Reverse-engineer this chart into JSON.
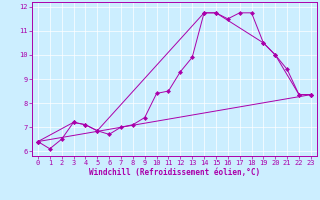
{
  "title": "",
  "xlabel": "Windchill (Refroidissement éolien,°C)",
  "bg_color": "#cceeff",
  "line_color": "#aa00aa",
  "xlim": [
    -0.5,
    23.5
  ],
  "ylim": [
    5.8,
    12.2
  ],
  "xticks": [
    0,
    1,
    2,
    3,
    4,
    5,
    6,
    7,
    8,
    9,
    10,
    11,
    12,
    13,
    14,
    15,
    16,
    17,
    18,
    19,
    20,
    21,
    22,
    23
  ],
  "yticks": [
    6,
    7,
    8,
    9,
    10,
    11,
    12
  ],
  "line1_x": [
    0,
    1,
    2,
    3,
    4,
    5,
    6,
    7,
    8,
    9,
    10,
    11,
    12,
    13,
    14,
    15,
    16,
    17,
    18,
    19,
    20,
    21,
    22,
    23
  ],
  "line1_y": [
    6.4,
    6.1,
    6.5,
    7.2,
    7.1,
    6.85,
    6.7,
    7.0,
    7.1,
    7.4,
    8.4,
    8.5,
    9.3,
    9.9,
    11.75,
    11.75,
    11.5,
    11.75,
    11.75,
    10.5,
    10.0,
    9.4,
    8.35,
    8.35
  ],
  "line2_x": [
    0,
    3,
    4,
    5,
    14,
    15,
    19,
    20,
    22,
    23
  ],
  "line2_y": [
    6.4,
    7.2,
    7.1,
    6.85,
    11.75,
    11.75,
    10.5,
    10.0,
    8.35,
    8.35
  ],
  "line3_x": [
    0,
    23
  ],
  "line3_y": [
    6.4,
    8.35
  ],
  "marker": "D",
  "markersize": 2.0,
  "linewidth": 0.7,
  "label_fontsize": 5.5,
  "tick_fontsize": 5.0
}
